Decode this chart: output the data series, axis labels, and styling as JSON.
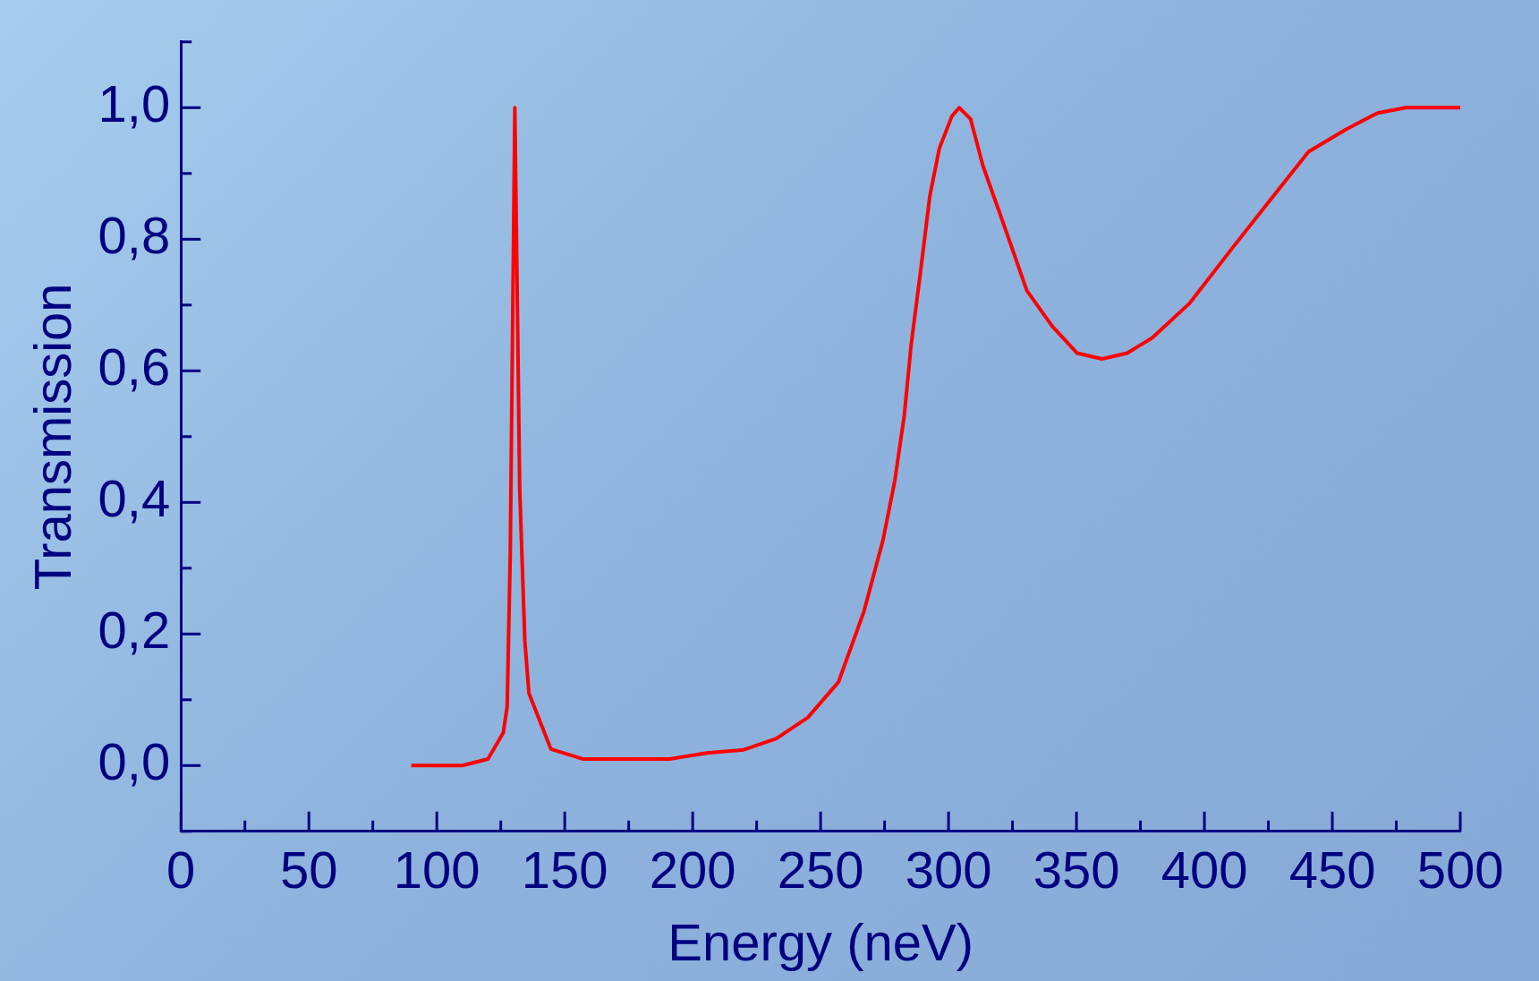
{
  "chart_data": {
    "type": "line",
    "xlabel": "Energy (neV)",
    "ylabel": "Transmission",
    "xlim": [
      0,
      500
    ],
    "ylim": [
      -0.1,
      1.1
    ],
    "xticks": [
      0,
      {
        "value": 25,
        "label": null
      },
      50,
      {
        "value": 75,
        "label": null
      },
      100,
      {
        "value": 125,
        "label": null
      },
      150,
      {
        "value": 175,
        "label": null
      },
      200,
      {
        "value": 225,
        "label": null
      },
      250,
      {
        "value": 275,
        "label": null
      },
      300,
      {
        "value": 325,
        "label": null
      },
      350,
      {
        "value": 375,
        "label": null
      },
      400,
      {
        "value": 425,
        "label": null
      },
      450,
      {
        "value": 475,
        "label": null
      },
      500
    ],
    "yticks": [
      {
        "value": -0.1,
        "label": null
      },
      {
        "value": 0,
        "label": "0,0"
      },
      {
        "value": 0.1,
        "label": null
      },
      {
        "value": 0.2,
        "label": "0,2"
      },
      {
        "value": 0.3,
        "label": null
      },
      {
        "value": 0.4,
        "label": "0,4"
      },
      {
        "value": 0.5,
        "label": null
      },
      {
        "value": 0.6,
        "label": "0,6"
      },
      {
        "value": 0.7,
        "label": null
      },
      {
        "value": 0.8,
        "label": "0,8"
      },
      {
        "value": 0.9,
        "label": null
      },
      {
        "value": 1.0,
        "label": "1,0"
      },
      {
        "value": 1.1,
        "label": null
      }
    ],
    "grid": false,
    "legend": false,
    "marker": "none",
    "line_style": "solid",
    "series": [
      {
        "color": "#ff0000",
        "x": [
          90,
          110,
          120,
          126,
          127.5,
          128.7,
          130.5,
          132.4,
          134.4,
          136,
          144.6,
          157,
          191,
          205.6,
          220,
          232.7,
          245,
          257,
          267,
          274.4,
          279,
          282.7,
          285.4,
          289,
          292.7,
          296.4,
          301.3,
          304.2,
          308.6,
          313.5,
          320.9,
          330.6,
          340.5,
          350.2,
          360,
          369.8,
          379.6,
          394.3,
          411.4,
          426,
          440.7,
          455.4,
          467.7,
          478.7,
          500
        ],
        "values": [
          0,
          0,
          0.01,
          0.05,
          0.09,
          0.32,
          1.0,
          0.42,
          0.19,
          0.11,
          0.025,
          0.01,
          0.01,
          0.019,
          0.024,
          0.041,
          0.073,
          0.127,
          0.235,
          0.343,
          0.433,
          0.532,
          0.64,
          0.749,
          0.866,
          0.938,
          0.987,
          1.0,
          0.983,
          0.911,
          0.83,
          0.722,
          0.668,
          0.627,
          0.618,
          0.627,
          0.65,
          0.703,
          0.789,
          0.861,
          0.933,
          0.967,
          0.992,
          1.0,
          1.0
        ]
      }
    ]
  }
}
